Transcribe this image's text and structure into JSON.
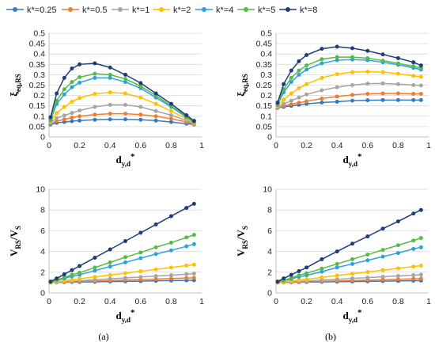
{
  "legend": {
    "entries": [
      "k*=0.25",
      "k*=0.5",
      "k*=1",
      "k*=2",
      "k*=4",
      "k*=5",
      "k*=8"
    ],
    "colors": [
      "#3a78c3",
      "#ed7d31",
      "#a5a5a5",
      "#ffc000",
      "#2aa3df",
      "#58b947",
      "#1f3d7a"
    ]
  },
  "panel_labels": [
    "(a)",
    "(b)"
  ],
  "chart_data": [
    {
      "type": "line",
      "panel": "(a)",
      "position": "top",
      "ylabel": "ξeq,RS",
      "xlabel": "dy,d*",
      "xlim": [
        0,
        1
      ],
      "ylim": [
        0,
        0.5
      ],
      "xticks": [
        "0",
        "0.2",
        "0.4",
        "0.6",
        "0.8",
        "1"
      ],
      "yticks": [
        "0",
        "0.05",
        "0.1",
        "0.15",
        "0.2",
        "0.25",
        "0.3",
        "0.35",
        "0.4",
        "0.45",
        "0.5"
      ],
      "grid": true,
      "x": [
        0.01,
        0.05,
        0.1,
        0.15,
        0.2,
        0.3,
        0.4,
        0.5,
        0.6,
        0.7,
        0.8,
        0.9,
        0.95
      ],
      "series": [
        {
          "name": "k*=0.25",
          "values": [
            0.06,
            0.068,
            0.072,
            0.076,
            0.079,
            0.083,
            0.085,
            0.085,
            0.083,
            0.079,
            0.072,
            0.064,
            0.06
          ]
        },
        {
          "name": "k*=0.5",
          "values": [
            0.065,
            0.076,
            0.085,
            0.093,
            0.1,
            0.108,
            0.112,
            0.112,
            0.108,
            0.1,
            0.088,
            0.072,
            0.062
          ]
        },
        {
          "name": "k*=1",
          "values": [
            0.07,
            0.09,
            0.104,
            0.116,
            0.128,
            0.145,
            0.155,
            0.155,
            0.145,
            0.125,
            0.105,
            0.08,
            0.065
          ]
        },
        {
          "name": "k*=2",
          "values": [
            0.075,
            0.115,
            0.145,
            0.17,
            0.188,
            0.208,
            0.215,
            0.21,
            0.19,
            0.16,
            0.125,
            0.088,
            0.068
          ]
        },
        {
          "name": "k*=4",
          "values": [
            0.08,
            0.16,
            0.205,
            0.24,
            0.262,
            0.285,
            0.285,
            0.265,
            0.235,
            0.19,
            0.145,
            0.095,
            0.072
          ]
        },
        {
          "name": "k*=5",
          "values": [
            0.085,
            0.175,
            0.23,
            0.265,
            0.288,
            0.305,
            0.3,
            0.28,
            0.245,
            0.2,
            0.15,
            0.1,
            0.075
          ]
        },
        {
          "name": "k*=8",
          "values": [
            0.095,
            0.21,
            0.285,
            0.33,
            0.35,
            0.355,
            0.335,
            0.3,
            0.26,
            0.21,
            0.16,
            0.105,
            0.078
          ]
        }
      ]
    },
    {
      "type": "line",
      "panel": "(b)",
      "position": "top",
      "ylabel": "ξeq,RS",
      "xlabel": "dy,d*",
      "xlim": [
        0,
        1
      ],
      "ylim": [
        0,
        0.5
      ],
      "xticks": [
        "0",
        "0.2",
        "0.4",
        "0.6",
        "0.8",
        "1"
      ],
      "yticks": [
        "0",
        "0.05",
        "0.1",
        "0.15",
        "0.2",
        "0.25",
        "0.3",
        "0.35",
        "0.4",
        "0.45",
        "0.5"
      ],
      "grid": true,
      "x": [
        0.01,
        0.05,
        0.1,
        0.15,
        0.2,
        0.3,
        0.4,
        0.5,
        0.6,
        0.7,
        0.8,
        0.9,
        0.95
      ],
      "series": [
        {
          "name": "k*=0.25",
          "values": [
            0.14,
            0.145,
            0.15,
            0.155,
            0.16,
            0.166,
            0.17,
            0.175,
            0.177,
            0.178,
            0.178,
            0.178,
            0.178
          ]
        },
        {
          "name": "k*=0.5",
          "values": [
            0.14,
            0.15,
            0.158,
            0.165,
            0.172,
            0.185,
            0.195,
            0.203,
            0.208,
            0.21,
            0.21,
            0.208,
            0.208
          ]
        },
        {
          "name": "k*=1",
          "values": [
            0.145,
            0.16,
            0.175,
            0.19,
            0.205,
            0.225,
            0.24,
            0.25,
            0.257,
            0.258,
            0.255,
            0.25,
            0.248
          ]
        },
        {
          "name": "k*=2",
          "values": [
            0.15,
            0.18,
            0.21,
            0.235,
            0.255,
            0.285,
            0.303,
            0.313,
            0.315,
            0.313,
            0.305,
            0.295,
            0.29
          ]
        },
        {
          "name": "k*=4",
          "values": [
            0.155,
            0.215,
            0.265,
            0.3,
            0.325,
            0.355,
            0.37,
            0.373,
            0.37,
            0.36,
            0.348,
            0.333,
            0.325
          ]
        },
        {
          "name": "k*=5",
          "values": [
            0.16,
            0.23,
            0.285,
            0.32,
            0.345,
            0.375,
            0.385,
            0.385,
            0.38,
            0.368,
            0.355,
            0.34,
            0.333
          ]
        },
        {
          "name": "k*=8",
          "values": [
            0.165,
            0.255,
            0.32,
            0.365,
            0.395,
            0.425,
            0.435,
            0.428,
            0.415,
            0.398,
            0.38,
            0.36,
            0.345
          ]
        }
      ]
    },
    {
      "type": "line",
      "panel": "(a)",
      "position": "bottom",
      "ylabel": "VRS/VS",
      "xlabel": "dy,d*",
      "xlim": [
        0,
        1
      ],
      "ylim": [
        0,
        10
      ],
      "xticks": [
        "0",
        "0.2",
        "0.4",
        "0.6",
        "0.8",
        "1"
      ],
      "yticks": [
        "0",
        "2",
        "4",
        "6",
        "8",
        "10"
      ],
      "grid": true,
      "x": [
        0.01,
        0.05,
        0.1,
        0.15,
        0.2,
        0.3,
        0.4,
        0.5,
        0.6,
        0.7,
        0.8,
        0.9,
        0.95
      ],
      "series": [
        {
          "name": "k*=0.25",
          "values": [
            1.0,
            1.01,
            1.03,
            1.04,
            1.05,
            1.07,
            1.1,
            1.12,
            1.14,
            1.17,
            1.19,
            1.21,
            1.22
          ]
        },
        {
          "name": "k*=0.5",
          "values": [
            1.0,
            1.02,
            1.05,
            1.07,
            1.1,
            1.15,
            1.2,
            1.25,
            1.29,
            1.34,
            1.39,
            1.44,
            1.46
          ]
        },
        {
          "name": "k*=1",
          "values": [
            1.0,
            1.04,
            1.09,
            1.13,
            1.18,
            1.27,
            1.36,
            1.45,
            1.54,
            1.63,
            1.72,
            1.81,
            1.86
          ]
        },
        {
          "name": "k*=2",
          "values": [
            1.0,
            1.09,
            1.18,
            1.27,
            1.36,
            1.55,
            1.73,
            1.91,
            2.09,
            2.27,
            2.45,
            2.64,
            2.73
          ]
        },
        {
          "name": "k*=4",
          "values": [
            1.05,
            1.2,
            1.4,
            1.6,
            1.75,
            2.15,
            2.55,
            2.95,
            3.35,
            3.75,
            4.1,
            4.5,
            4.7
          ]
        },
        {
          "name": "k*=5",
          "values": [
            1.05,
            1.25,
            1.5,
            1.75,
            1.95,
            2.45,
            2.95,
            3.45,
            3.9,
            4.4,
            4.85,
            5.35,
            5.6
          ]
        },
        {
          "name": "k*=8",
          "values": [
            1.1,
            1.4,
            1.8,
            2.2,
            2.6,
            3.4,
            4.2,
            5.0,
            5.8,
            6.6,
            7.4,
            8.2,
            8.6
          ]
        }
      ]
    },
    {
      "type": "line",
      "panel": "(b)",
      "position": "bottom",
      "ylabel": "VRS/VS",
      "xlabel": "dy,d*",
      "xlim": [
        0,
        1
      ],
      "ylim": [
        0,
        10
      ],
      "xticks": [
        "0",
        "0.2",
        "0.4",
        "0.6",
        "0.8",
        "1"
      ],
      "yticks": [
        "0",
        "2",
        "4",
        "6",
        "8",
        "10"
      ],
      "grid": true,
      "x": [
        0.01,
        0.05,
        0.1,
        0.15,
        0.2,
        0.3,
        0.4,
        0.5,
        0.6,
        0.7,
        0.8,
        0.9,
        0.95
      ],
      "series": [
        {
          "name": "k*=0.25",
          "values": [
            1.0,
            1.01,
            1.02,
            1.03,
            1.04,
            1.06,
            1.08,
            1.1,
            1.12,
            1.14,
            1.16,
            1.18,
            1.19
          ]
        },
        {
          "name": "k*=0.5",
          "values": [
            1.0,
            1.02,
            1.04,
            1.06,
            1.08,
            1.12,
            1.16,
            1.2,
            1.24,
            1.28,
            1.32,
            1.36,
            1.38
          ]
        },
        {
          "name": "k*=1",
          "values": [
            1.0,
            1.04,
            1.08,
            1.12,
            1.16,
            1.24,
            1.32,
            1.4,
            1.48,
            1.56,
            1.64,
            1.72,
            1.76
          ]
        },
        {
          "name": "k*=2",
          "values": [
            1.0,
            1.08,
            1.16,
            1.24,
            1.32,
            1.5,
            1.68,
            1.85,
            2.02,
            2.2,
            2.37,
            2.55,
            2.63
          ]
        },
        {
          "name": "k*=4",
          "values": [
            1.05,
            1.18,
            1.35,
            1.55,
            1.7,
            2.05,
            2.45,
            2.8,
            3.15,
            3.5,
            3.85,
            4.25,
            4.4
          ]
        },
        {
          "name": "k*=5",
          "values": [
            1.05,
            1.2,
            1.45,
            1.7,
            1.9,
            2.35,
            2.8,
            3.25,
            3.7,
            4.15,
            4.6,
            5.05,
            5.3
          ]
        },
        {
          "name": "k*=8",
          "values": [
            1.1,
            1.4,
            1.75,
            2.1,
            2.45,
            3.25,
            4.0,
            4.75,
            5.45,
            6.2,
            6.9,
            7.65,
            8.0
          ]
        }
      ]
    }
  ]
}
